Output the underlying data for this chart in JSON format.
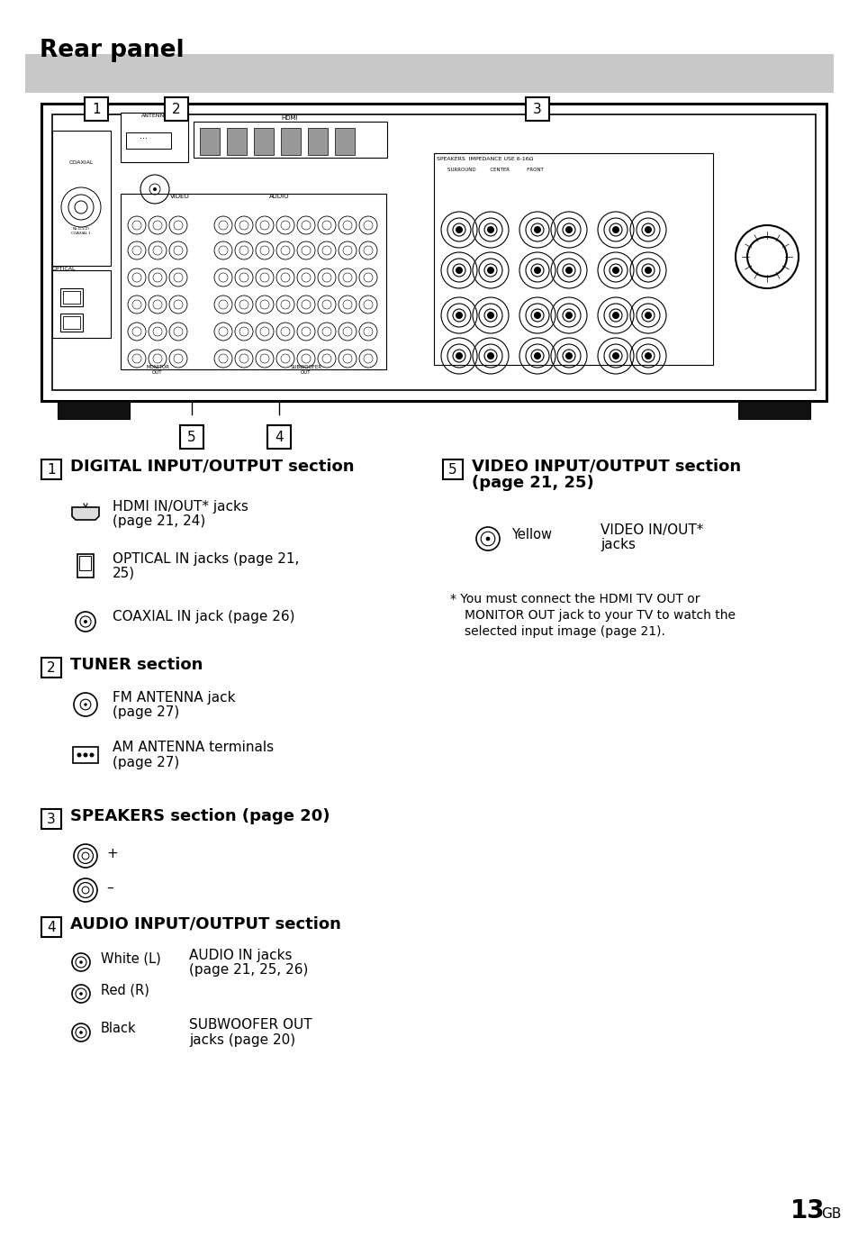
{
  "title": "Rear panel",
  "title_bg": "#c8c8c8",
  "page_bg": "#ffffff",
  "page_num": "13",
  "page_suffix": "GB",
  "content": {
    "footnote_line1": "* You must connect the HDMI TV OUT or",
    "footnote_line2": "MONITOR OUT jack to your TV to watch the",
    "footnote_line3": "selected input image (page 21)."
  }
}
